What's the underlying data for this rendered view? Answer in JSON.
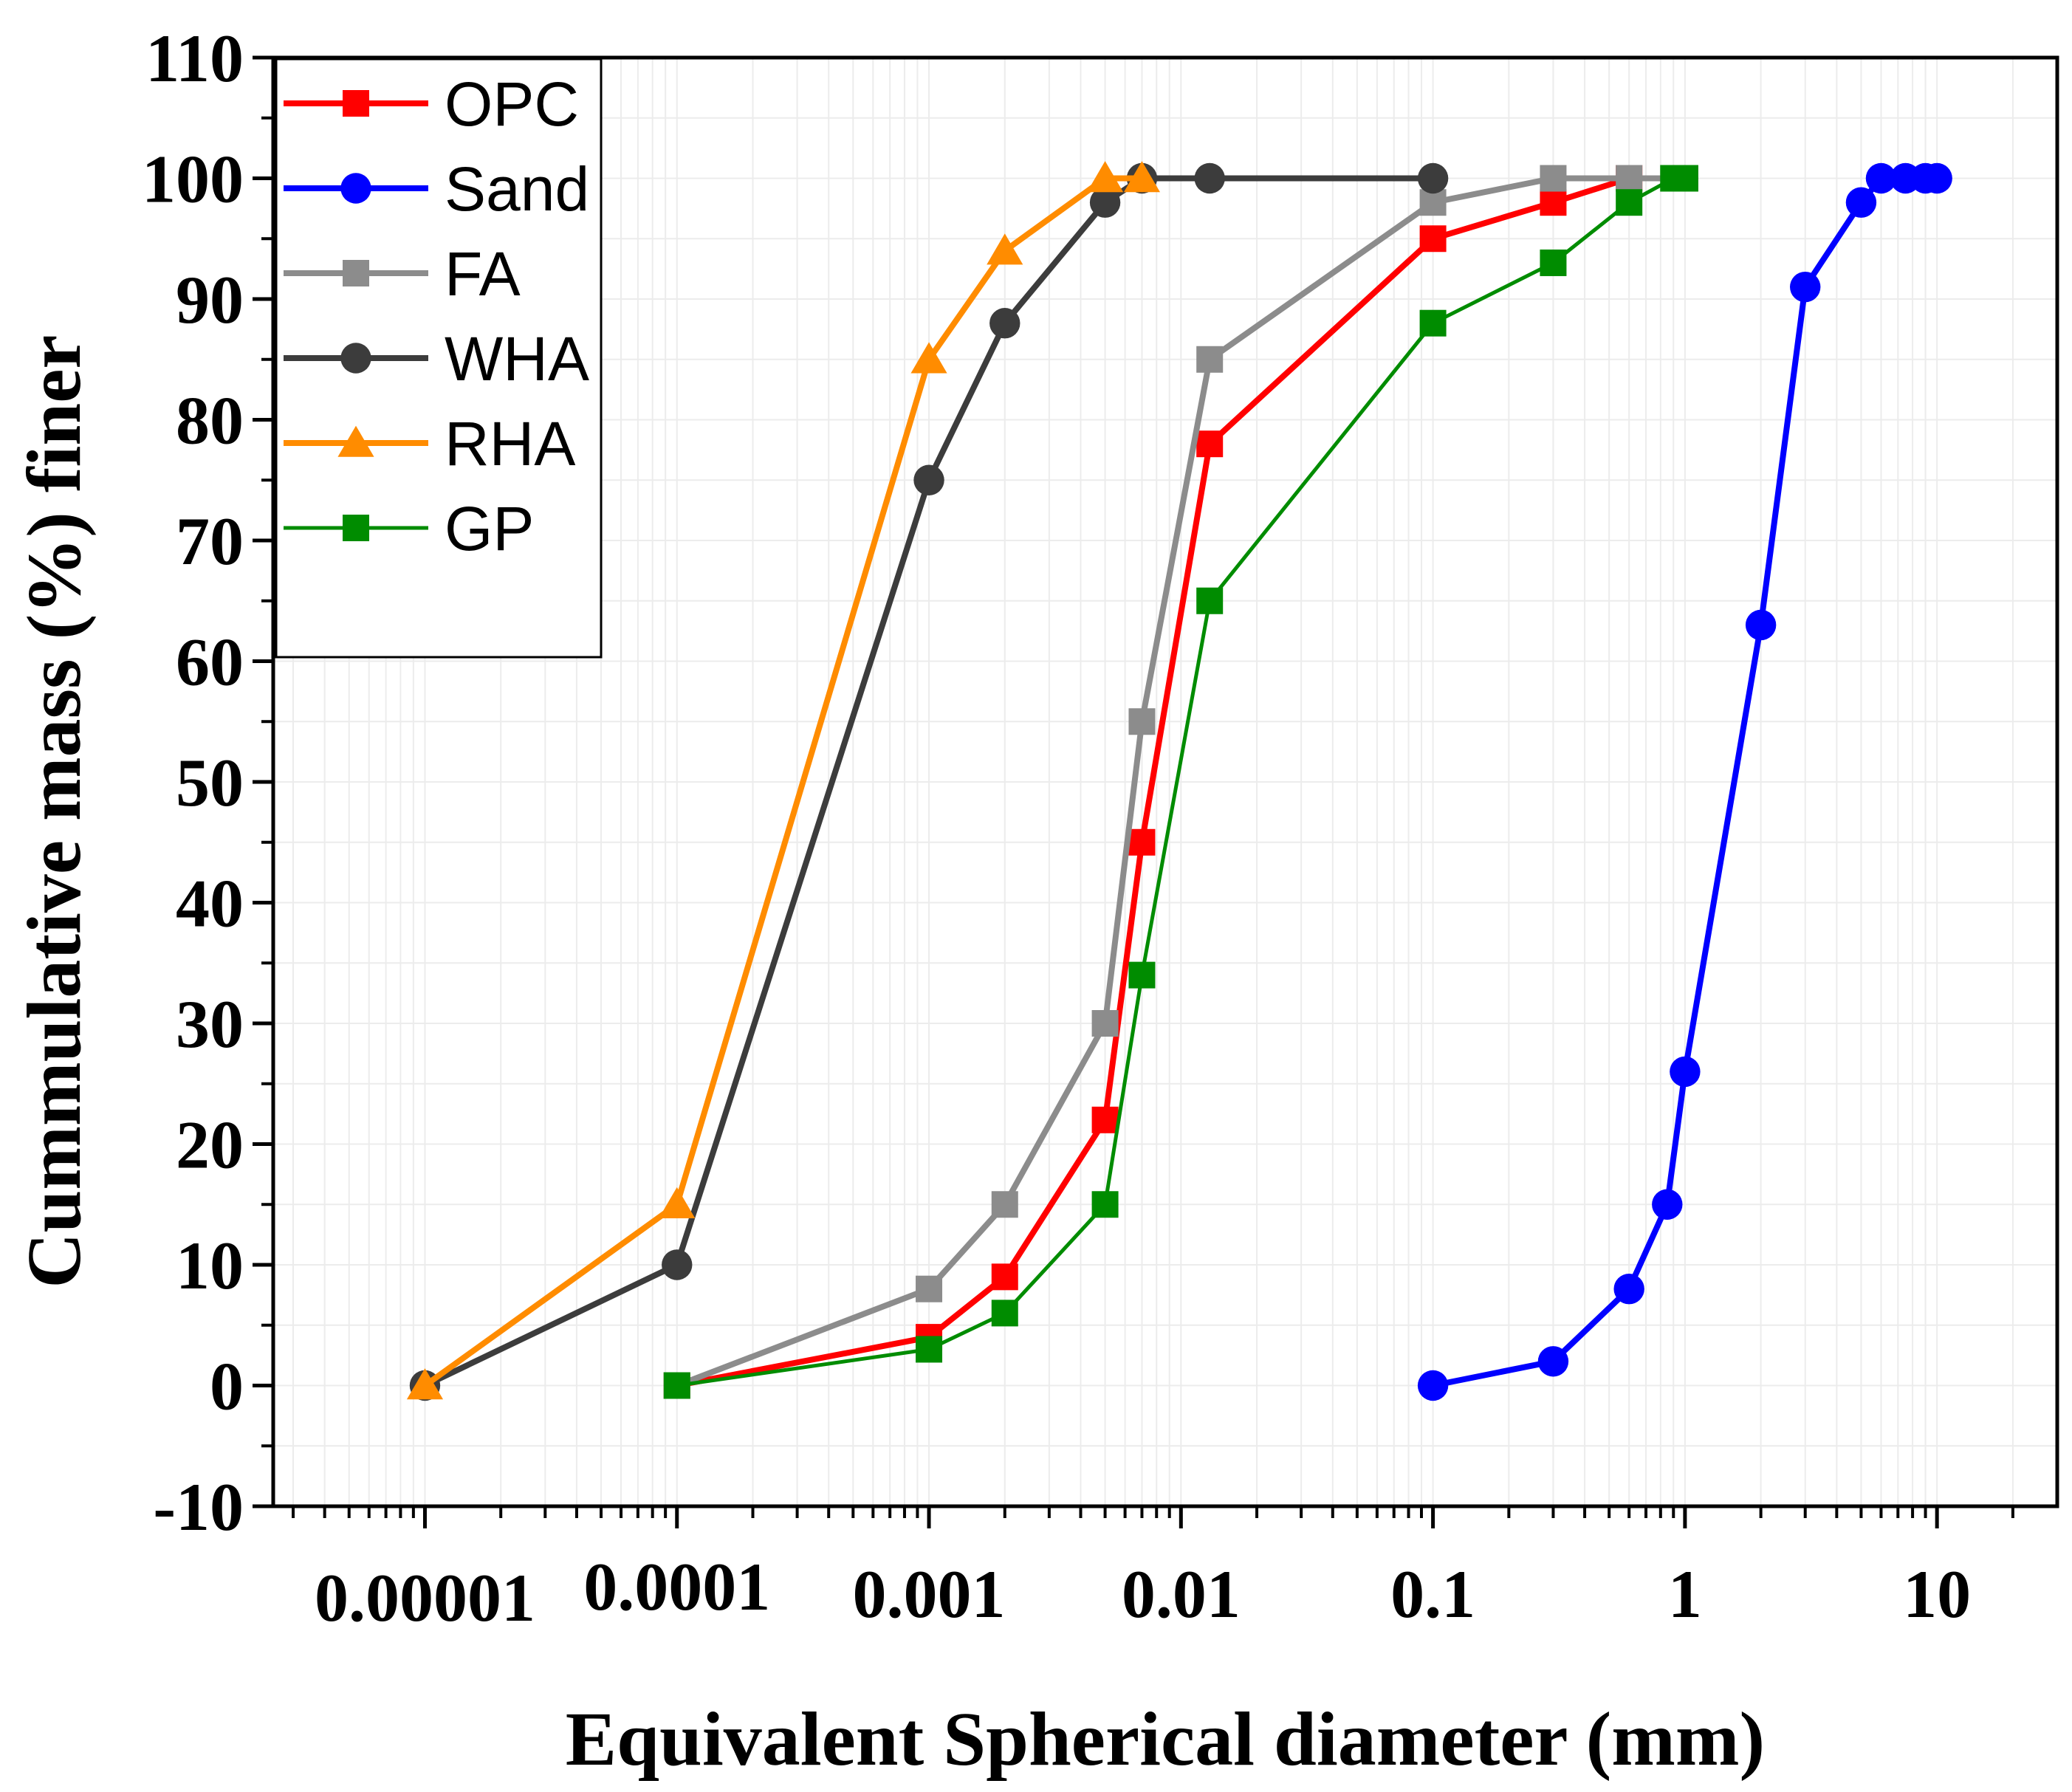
{
  "chart_data": {
    "type": "line",
    "title": "",
    "xlabel": "Equivalent Spherical diameter (mm)",
    "ylabel": "Cummulative mass (%) finer",
    "xscale": "log",
    "xlim": [
      2.5e-06,
      30
    ],
    "ylim": [
      -10,
      110
    ],
    "x_ticks": [
      1e-05,
      0.0001,
      0.001,
      0.01,
      0.1,
      1,
      10
    ],
    "x_tick_labels": [
      "0.00001",
      "0.0001",
      "0.001",
      "0.01",
      "0.1",
      "1",
      "10"
    ],
    "y_ticks": [
      -10,
      0,
      10,
      20,
      30,
      40,
      50,
      60,
      70,
      80,
      90,
      100,
      110
    ],
    "y_tick_labels": [
      "-10",
      "0",
      "10",
      "20",
      "30",
      "40",
      "50",
      "60",
      "70",
      "80",
      "90",
      "100",
      "110"
    ],
    "grid": true,
    "legend_position": "top-left",
    "series": [
      {
        "name": "OPC",
        "color": "#ff0000",
        "marker": "square",
        "x": [
          0.0001,
          0.001,
          0.002,
          0.005,
          0.007,
          0.013,
          0.1,
          0.3,
          0.6,
          1
        ],
        "y": [
          0,
          4,
          9,
          22,
          45,
          78,
          95,
          98,
          100,
          100
        ]
      },
      {
        "name": "Sand",
        "color": "#0000ff",
        "marker": "circle",
        "x": [
          0.1,
          0.3,
          0.6,
          0.85,
          1,
          2,
          3,
          5,
          6,
          7.5,
          9,
          10
        ],
        "y": [
          0,
          2,
          8,
          15,
          26,
          63,
          91,
          98,
          100,
          100,
          100,
          100
        ]
      },
      {
        "name": "FA",
        "color": "#8c8c8c",
        "marker": "square",
        "x": [
          0.0001,
          0.001,
          0.002,
          0.005,
          0.007,
          0.013,
          0.1,
          0.3,
          0.6,
          1
        ],
        "y": [
          0,
          8,
          15,
          30,
          55,
          85,
          98,
          100,
          100,
          100
        ]
      },
      {
        "name": "WHA",
        "color": "#3c3c3c",
        "marker": "circle",
        "x": [
          1e-05,
          0.0001,
          0.001,
          0.002,
          0.005,
          0.007,
          0.013,
          0.1
        ],
        "y": [
          0,
          10,
          75,
          88,
          98,
          100,
          100,
          100
        ]
      },
      {
        "name": "RHA",
        "color": "#ff8c00",
        "marker": "triangle",
        "x": [
          1e-05,
          0.0001,
          0.001,
          0.002,
          0.005,
          0.007
        ],
        "y": [
          0,
          15,
          85,
          94,
          100,
          100
        ]
      },
      {
        "name": "GP",
        "color": "#008c00",
        "marker": "square",
        "x": [
          0.0001,
          0.001,
          0.002,
          0.005,
          0.007,
          0.013,
          0.1,
          0.3,
          0.6,
          0.9,
          1
        ],
        "y": [
          0,
          3,
          6,
          15,
          34,
          65,
          88,
          93,
          98,
          100,
          100
        ]
      }
    ]
  }
}
